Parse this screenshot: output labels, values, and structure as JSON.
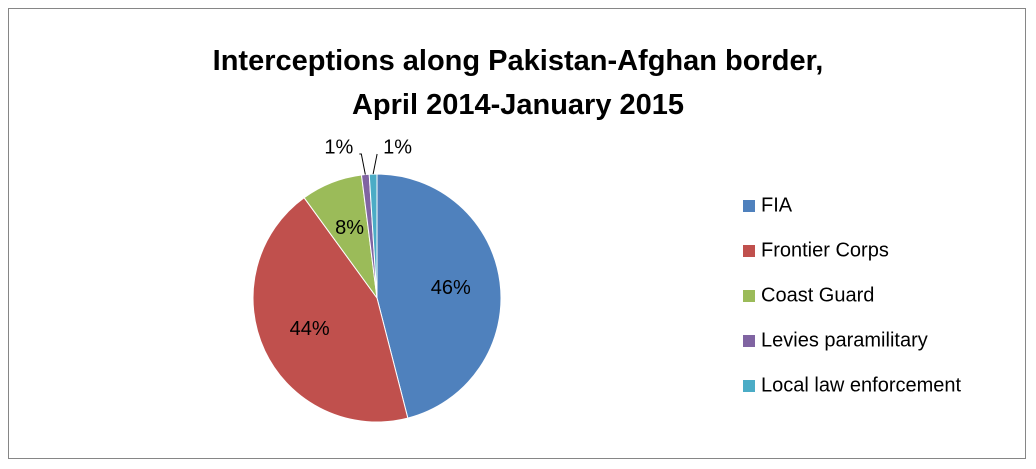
{
  "chart_data": {
    "type": "pie",
    "title": "Interceptions along Pakistan-Afghan border,\nApril 2014-January 2015",
    "categories": [
      "FIA",
      "Frontier Corps",
      "Coast Guard",
      "Levies paramilitary",
      "Local law enforcement"
    ],
    "values": [
      46,
      44,
      8,
      1,
      1
    ],
    "value_labels": [
      "46%",
      "44%",
      "8%",
      "1%",
      "1%"
    ],
    "colors": [
      "#4f81bd",
      "#c0504d",
      "#9bbb59",
      "#8064a2",
      "#4bacc6"
    ],
    "legend": "right"
  }
}
